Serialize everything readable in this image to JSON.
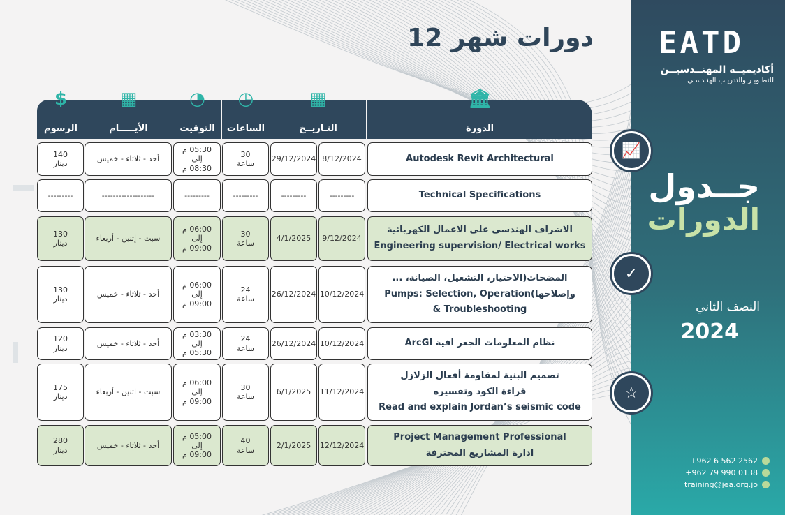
{
  "title": "دورات شهر 12",
  "headers": {
    "fee": "الرسوم",
    "days": "الأيـــــام",
    "time": "التوقيت",
    "hours": "الساعات",
    "date": "التـاريــخ",
    "course": "الدورة"
  },
  "header_icons": {
    "fee": "money-hand-icon",
    "days": "calendar-grid-icon",
    "time": "clock-arrow-icon",
    "hours": "clock-icon",
    "date": "calendar-icon",
    "course": "podium-book-icon"
  },
  "rows": [
    {
      "course": [
        "Autodesk Revit Architectural"
      ],
      "start": "8/12/2024",
      "end": "29/12/2024",
      "hours": [
        "30",
        "ساعة"
      ],
      "time": [
        "05:30 م",
        "إلى",
        "08:30 م"
      ],
      "days": "أحد - ثلاثاء - خميس",
      "fee": [
        "140",
        "دينار"
      ],
      "green": false
    },
    {
      "course": [
        "Technical Specifications"
      ],
      "start": "---------",
      "end": "---------",
      "hours": [
        "---------"
      ],
      "time": [
        "---------"
      ],
      "days": "-------------------",
      "fee": [
        "---------"
      ],
      "green": false
    },
    {
      "course": [
        "الاشراف الهندسي على الاعمال الكهربائية",
        "Engineering supervision/ Electrical works"
      ],
      "start": "9/12/2024",
      "end": "4/1/2025",
      "hours": [
        "30",
        "ساعة"
      ],
      "time": [
        "06:00 م",
        "إلى",
        "09:00 م"
      ],
      "days": "سبت - إثنين - أربعاء",
      "fee": [
        "130",
        "دينار"
      ],
      "green": true
    },
    {
      "course": [
        "المضخات(الاختيار، التشغيل، الصيانة، ...",
        "وإصلاحها)Pumps: Selection, Operation",
        "Troubleshooting &"
      ],
      "start": "10/12/2024",
      "end": "26/12/2024",
      "hours": [
        "24",
        "ساعة"
      ],
      "time": [
        "06:00 م",
        "إلى",
        "09:00 م"
      ],
      "days": "أحد - ثلاثاء - خميس",
      "fee": [
        "130",
        "دينار"
      ],
      "green": false
    },
    {
      "course": [
        "نظام المعلومات الجغر افية ArcGI"
      ],
      "start": "10/12/2024",
      "end": "26/12/2024",
      "hours": [
        "24",
        "ساعة"
      ],
      "time": [
        "03:30 م",
        "إلى",
        "05:30 م"
      ],
      "days": "أحد - ثلاثاء - خميس",
      "fee": [
        "120",
        "دينار"
      ],
      "green": false
    },
    {
      "course": [
        "تصميم البنية لمقاومة أفعال الزلازل",
        "قراءة الكود وتفسيره",
        "Read and explain Jordan’s seismic code"
      ],
      "start": "11/12/2024",
      "end": "6/1/2025",
      "hours": [
        "30",
        "ساعة"
      ],
      "time": [
        "06:00 م",
        "إلى",
        "09:00 م"
      ],
      "days": "سبت - اثنين - أربعاء",
      "fee": [
        "175",
        "دينار"
      ],
      "green": false
    },
    {
      "course": [
        "Project Management Professional",
        "ادارة المشاريع المحترفة"
      ],
      "start": "12/12/2024",
      "end": "2/1/2025",
      "hours": [
        "40",
        "ساعة"
      ],
      "time": [
        "05:00 م",
        "إلى",
        "09:00 م"
      ],
      "days": "أحد - ثلاثاء - خميس",
      "fee": [
        "280",
        "دينار"
      ],
      "green": true
    }
  ],
  "panel": {
    "logo": "EATD",
    "org_name": "أكاديميــة المهنــدسيــن",
    "org_sub": "للتطـويـر والتدريـب الهنـدسـي",
    "heading1": "جــدول",
    "heading2": "الدورات",
    "semester": "النصف الثاني",
    "year": "2024",
    "circle_icons": [
      "chart-growth-icon",
      "check-icon",
      "star-icon"
    ],
    "contacts": [
      "+962  6  562  2562",
      "+962  79  990 0138",
      "training@jea.org.jo"
    ]
  },
  "colors": {
    "navy": "#2f475c",
    "teal": "#2aa9a8",
    "green_row": "#dbe8cf",
    "accent_green": "#c8e2a8"
  }
}
